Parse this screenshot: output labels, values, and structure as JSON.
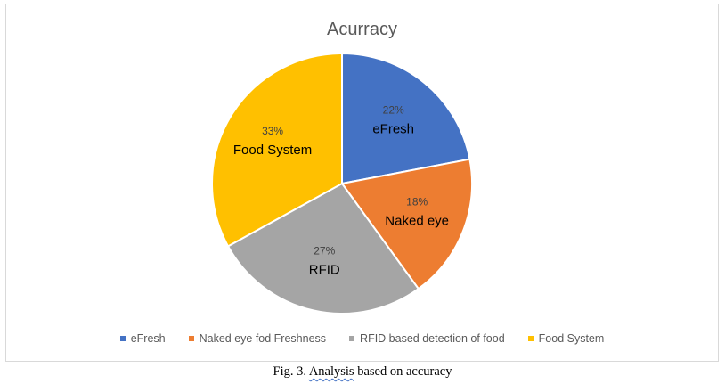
{
  "chart_data": {
    "type": "pie",
    "title": "Acurracy",
    "categories": [
      "eFresh",
      "Naked eye fod Freshness",
      "RFID based detection of food",
      "Food System"
    ],
    "values": [
      22,
      18,
      27,
      33
    ],
    "percent_labels": [
      "22%",
      "18%",
      "27%",
      "33%"
    ],
    "slice_labels": [
      "eFresh",
      "Naked eye",
      "RFID",
      "Food System"
    ],
    "colors": [
      "#4472c4",
      "#ed7d31",
      "#a5a5a5",
      "#ffc000"
    ],
    "legend_position": "bottom"
  },
  "caption": {
    "prefix": "Fig. 3. ",
    "squiggle_word": "Analysis",
    "suffix": " based on accuracy"
  }
}
